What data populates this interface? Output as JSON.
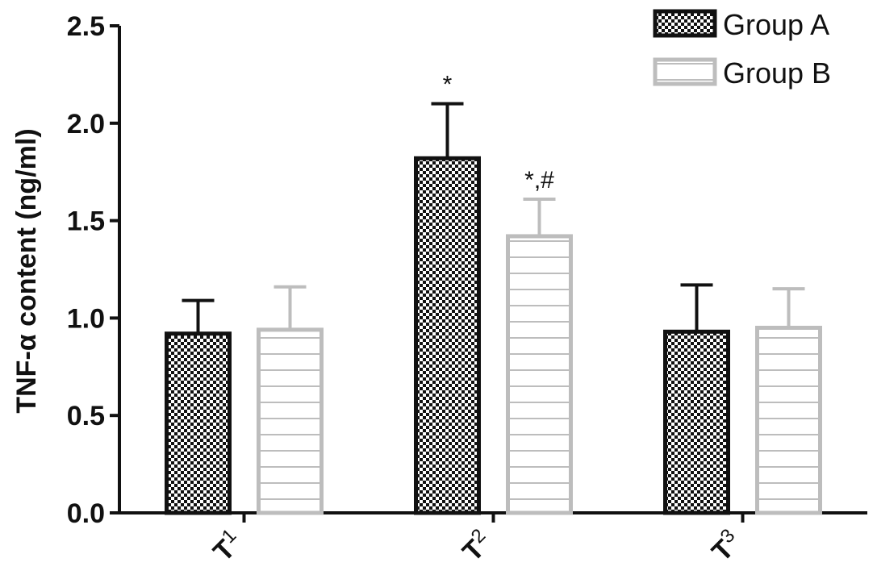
{
  "chart_data": {
    "type": "bar",
    "ylabel": "TNF-α content (ng/ml)",
    "ylim": [
      0,
      2.5
    ],
    "yticks": [
      "0.0",
      "0.5",
      "1.0",
      "1.5",
      "2.0",
      "2.5"
    ],
    "categories": [
      {
        "base": "T",
        "sub": "1"
      },
      {
        "base": "T",
        "sub": "2"
      },
      {
        "base": "T",
        "sub": "3"
      }
    ],
    "series": [
      {
        "name": "Group A",
        "values": [
          0.92,
          1.82,
          0.93
        ],
        "errors": [
          0.17,
          0.28,
          0.24
        ],
        "annotations": [
          "",
          "*",
          ""
        ],
        "color": "#111111",
        "pattern": "checker"
      },
      {
        "name": "Group B",
        "values": [
          0.94,
          1.42,
          0.95
        ],
        "errors": [
          0.22,
          0.19,
          0.2
        ],
        "annotations": [
          "",
          "*,#",
          ""
        ],
        "color": "#bdbdbd",
        "pattern": "hlines"
      }
    ],
    "legend": "top-right",
    "grid": false
  }
}
